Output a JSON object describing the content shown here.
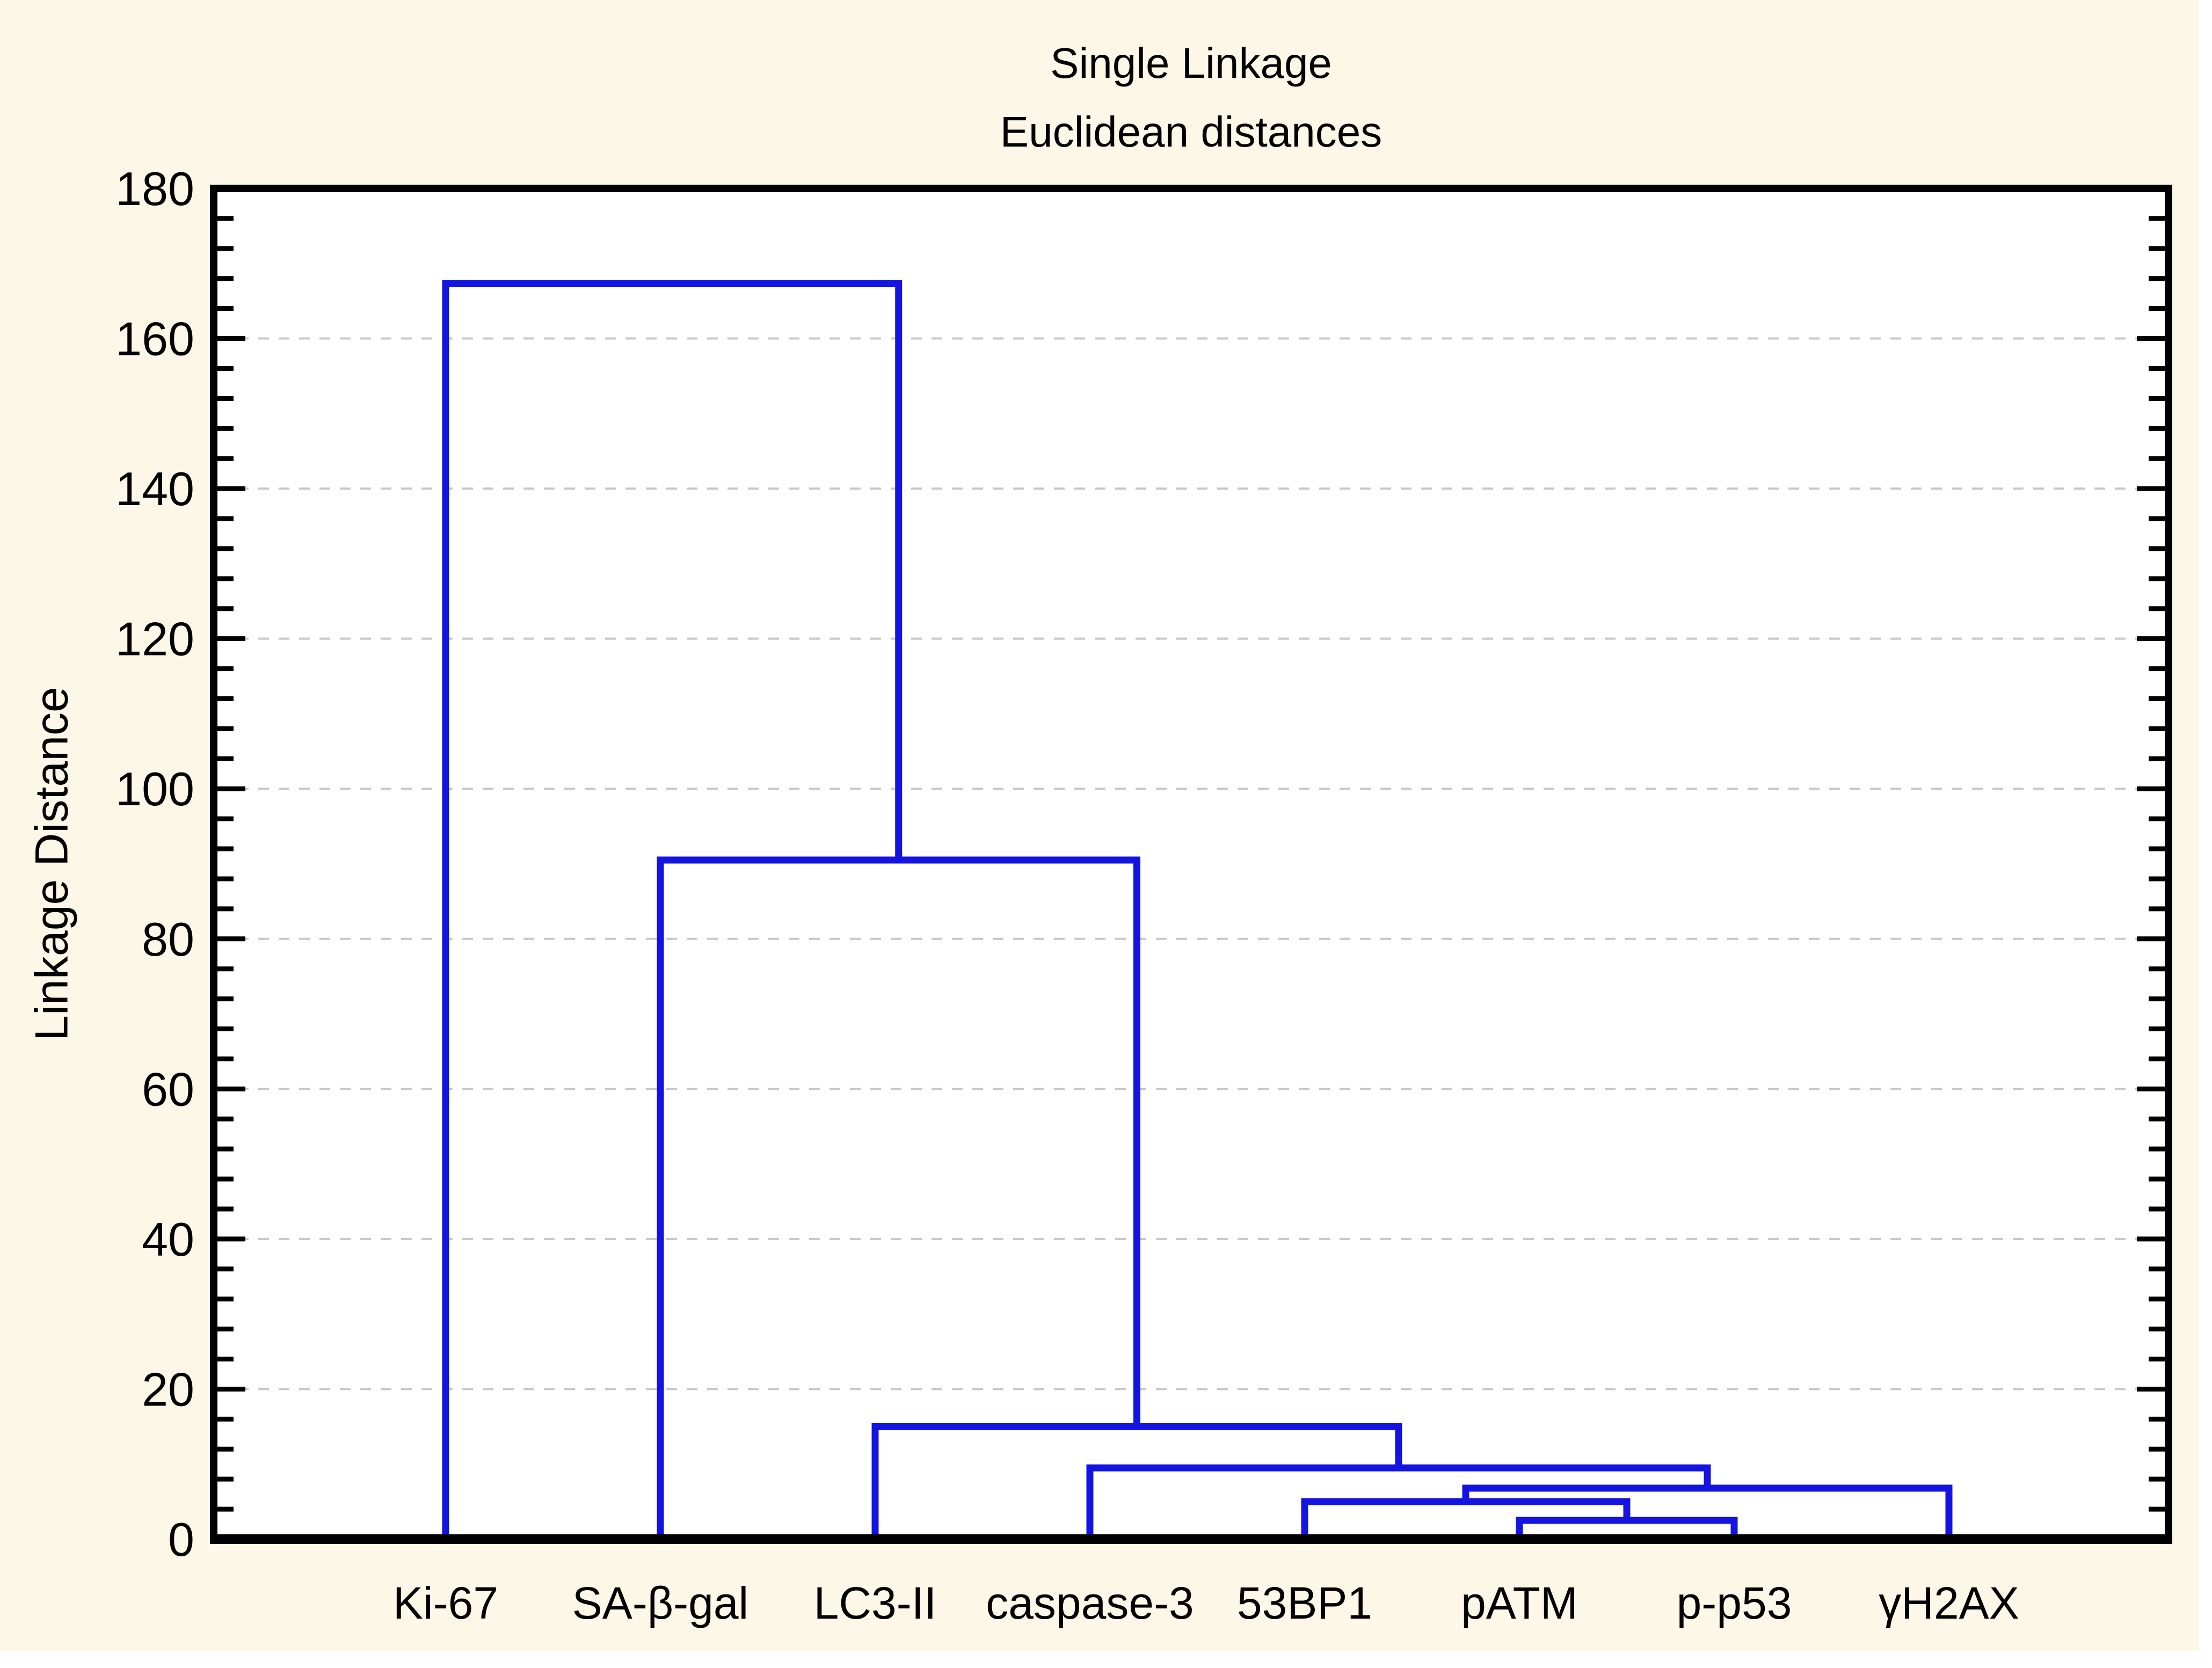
{
  "chart_data": {
    "type": "dendrogram",
    "title": "Single Linkage",
    "subtitle": "Euclidean distances",
    "ylabel": "Linkage Distance",
    "xlabel": "",
    "ylim": [
      0,
      180
    ],
    "ytick_interval": 20,
    "yminor_interval": 4,
    "yticks": [
      0,
      20,
      40,
      60,
      80,
      100,
      120,
      140,
      160,
      180
    ],
    "grid": "horizontal-dashed",
    "legend": "none",
    "leaves": [
      "Ki-67",
      "SA-β-gal",
      "LC3-II",
      "caspase-3",
      "53BP1",
      "pATM",
      "p-p53",
      "γH2AX"
    ],
    "merges": [
      {
        "id": "M0",
        "left": "L5",
        "right": "L6",
        "height": 2.5
      },
      {
        "id": "M1",
        "left": "L4",
        "right": "M0",
        "height": 5.0
      },
      {
        "id": "M2",
        "left": "M1",
        "right": "L7",
        "height": 6.8
      },
      {
        "id": "M3",
        "left": "L3",
        "right": "M2",
        "height": 9.5
      },
      {
        "id": "M4",
        "left": "L2",
        "right": "M3",
        "height": 15.0
      },
      {
        "id": "M5",
        "left": "L1",
        "right": "M4",
        "height": 90.5
      },
      {
        "id": "M6",
        "left": "L0",
        "right": "M5",
        "height": 167.3
      }
    ],
    "colors": {
      "link": "#1414E0",
      "frame": "#000000",
      "grid": "#C8C8C8",
      "page_background": "#FCF7E6",
      "plot_background": "#FFFFFF",
      "text": "#000000"
    }
  }
}
